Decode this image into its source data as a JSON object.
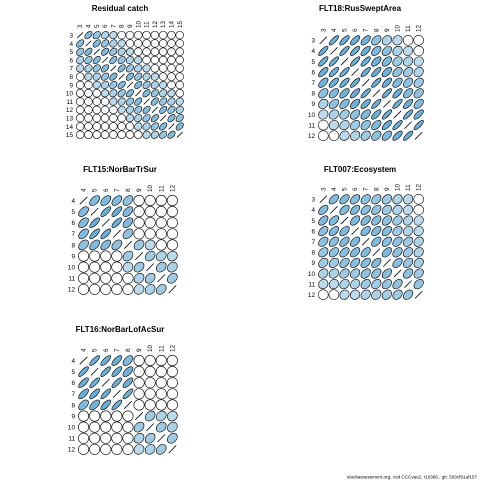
{
  "footer_text": "stockassessment.org, cod CCCvas2, r10366 , git: 503cf91af157",
  "colors": {
    "ellipse_fill": "#6baed6",
    "stroke": "#000000",
    "background": "#ffffff"
  },
  "chart_data": [
    {
      "type": "heatmap",
      "title": "Residual catch",
      "ages": [
        3,
        4,
        5,
        6,
        7,
        8,
        9,
        10,
        11,
        12,
        13,
        14,
        15
      ],
      "correlations": [
        [
          1.0,
          0.5,
          0.35,
          0.2,
          0.1,
          0.0,
          0.0,
          0.0,
          0.0,
          0.0,
          0.0,
          0.0,
          0.0
        ],
        [
          0.5,
          1.0,
          0.5,
          0.35,
          0.2,
          0.1,
          0.0,
          0.0,
          0.0,
          0.0,
          0.0,
          0.0,
          0.0
        ],
        [
          0.35,
          0.5,
          1.0,
          0.5,
          0.35,
          0.2,
          0.1,
          0.0,
          0.0,
          0.0,
          0.0,
          0.0,
          0.0
        ],
        [
          0.2,
          0.35,
          0.5,
          1.0,
          0.5,
          0.35,
          0.2,
          0.1,
          0.0,
          0.0,
          0.0,
          0.0,
          0.0
        ],
        [
          0.1,
          0.2,
          0.35,
          0.5,
          1.0,
          0.5,
          0.35,
          0.2,
          0.1,
          0.0,
          0.0,
          0.0,
          0.0
        ],
        [
          0.0,
          0.1,
          0.2,
          0.35,
          0.5,
          1.0,
          0.5,
          0.35,
          0.2,
          0.1,
          0.0,
          0.0,
          0.0
        ],
        [
          0.0,
          0.0,
          0.1,
          0.2,
          0.35,
          0.5,
          1.0,
          0.5,
          0.35,
          0.2,
          0.1,
          0.0,
          0.0
        ],
        [
          0.0,
          0.0,
          0.0,
          0.1,
          0.2,
          0.35,
          0.5,
          1.0,
          0.5,
          0.35,
          0.2,
          0.1,
          0.0
        ],
        [
          0.0,
          0.0,
          0.0,
          0.0,
          0.1,
          0.2,
          0.35,
          0.5,
          1.0,
          0.5,
          0.35,
          0.2,
          0.1
        ],
        [
          0.0,
          0.0,
          0.0,
          0.0,
          0.0,
          0.1,
          0.2,
          0.35,
          0.5,
          1.0,
          0.5,
          0.35,
          0.2
        ],
        [
          0.0,
          0.0,
          0.0,
          0.0,
          0.0,
          0.0,
          0.1,
          0.2,
          0.35,
          0.5,
          1.0,
          0.5,
          0.35
        ],
        [
          0.0,
          0.0,
          0.0,
          0.0,
          0.0,
          0.0,
          0.0,
          0.1,
          0.2,
          0.35,
          0.5,
          1.0,
          0.5
        ],
        [
          0.0,
          0.0,
          0.0,
          0.0,
          0.0,
          0.0,
          0.0,
          0.0,
          0.1,
          0.2,
          0.35,
          0.5,
          1.0
        ]
      ]
    },
    {
      "type": "heatmap",
      "title": "FLT18:RusSweptArea",
      "ages": [
        3,
        4,
        5,
        6,
        7,
        8,
        9,
        10,
        11,
        12
      ],
      "correlations": [
        [
          1.0,
          0.8,
          0.75,
          0.7,
          0.6,
          0.4,
          0.2,
          0.1,
          0.0,
          0.0
        ],
        [
          0.8,
          1.0,
          0.8,
          0.75,
          0.7,
          0.5,
          0.4,
          0.2,
          0.1,
          0.0
        ],
        [
          0.75,
          0.8,
          1.0,
          0.8,
          0.75,
          0.6,
          0.5,
          0.3,
          0.2,
          0.1
        ],
        [
          0.7,
          0.75,
          0.8,
          1.0,
          0.8,
          0.75,
          0.6,
          0.4,
          0.3,
          0.2
        ],
        [
          0.6,
          0.7,
          0.75,
          0.8,
          1.0,
          0.8,
          0.7,
          0.5,
          0.4,
          0.3
        ],
        [
          0.4,
          0.5,
          0.6,
          0.75,
          0.8,
          1.0,
          0.8,
          0.7,
          0.5,
          0.4
        ],
        [
          0.2,
          0.4,
          0.5,
          0.6,
          0.7,
          0.8,
          1.0,
          0.8,
          0.7,
          0.5
        ],
        [
          0.1,
          0.2,
          0.3,
          0.4,
          0.5,
          0.7,
          0.8,
          1.0,
          0.8,
          0.7
        ],
        [
          0.0,
          0.1,
          0.2,
          0.3,
          0.4,
          0.5,
          0.7,
          0.8,
          1.0,
          0.8
        ],
        [
          0.0,
          0.0,
          0.1,
          0.2,
          0.3,
          0.4,
          0.5,
          0.7,
          0.8,
          1.0
        ]
      ]
    },
    {
      "type": "heatmap",
      "title": "FLT15:NorBarTrSur",
      "ages": [
        4,
        5,
        6,
        7,
        8,
        9,
        10,
        11,
        12
      ],
      "correlations": [
        [
          1.0,
          0.5,
          0.5,
          0.5,
          0.4,
          0.0,
          0.0,
          0.0,
          0.0
        ],
        [
          0.5,
          1.0,
          0.75,
          0.75,
          0.5,
          0.0,
          0.0,
          0.0,
          0.0
        ],
        [
          0.5,
          0.75,
          1.0,
          0.75,
          0.5,
          0.0,
          0.0,
          0.0,
          0.0
        ],
        [
          0.5,
          0.75,
          0.75,
          1.0,
          0.4,
          0.0,
          0.0,
          0.0,
          0.0
        ],
        [
          0.4,
          0.5,
          0.5,
          0.4,
          1.0,
          0.3,
          0.1,
          0.0,
          0.0
        ],
        [
          0.0,
          0.0,
          0.0,
          0.0,
          0.3,
          1.0,
          0.3,
          0.2,
          0.1
        ],
        [
          0.0,
          0.0,
          0.0,
          0.0,
          0.1,
          0.3,
          1.0,
          0.3,
          0.2
        ],
        [
          0.0,
          0.0,
          0.0,
          0.0,
          0.0,
          0.2,
          0.3,
          1.0,
          0.3
        ],
        [
          0.0,
          0.0,
          0.0,
          0.0,
          0.0,
          0.1,
          0.2,
          0.3,
          1.0
        ]
      ]
    },
    {
      "type": "heatmap",
      "title": "FLT007:Ecosystem",
      "ages": [
        3,
        4,
        5,
        6,
        7,
        8,
        9,
        10,
        11,
        12
      ],
      "correlations": [
        [
          1.0,
          0.5,
          0.5,
          0.45,
          0.4,
          0.35,
          0.3,
          0.2,
          0.1,
          0.0
        ],
        [
          0.5,
          1.0,
          0.5,
          0.5,
          0.45,
          0.4,
          0.3,
          0.2,
          0.1,
          0.0
        ],
        [
          0.5,
          0.5,
          1.0,
          0.5,
          0.5,
          0.45,
          0.4,
          0.3,
          0.2,
          0.1
        ],
        [
          0.45,
          0.5,
          0.5,
          1.0,
          0.5,
          0.5,
          0.45,
          0.3,
          0.2,
          0.1
        ],
        [
          0.4,
          0.45,
          0.5,
          0.5,
          1.0,
          0.5,
          0.45,
          0.4,
          0.3,
          0.2
        ],
        [
          0.35,
          0.4,
          0.45,
          0.5,
          0.5,
          1.0,
          0.5,
          0.4,
          0.3,
          0.2
        ],
        [
          0.3,
          0.3,
          0.4,
          0.45,
          0.45,
          0.5,
          1.0,
          0.45,
          0.35,
          0.25
        ],
        [
          0.2,
          0.2,
          0.3,
          0.3,
          0.4,
          0.4,
          0.45,
          1.0,
          0.4,
          0.3
        ],
        [
          0.1,
          0.1,
          0.2,
          0.2,
          0.3,
          0.3,
          0.35,
          0.4,
          1.0,
          0.35
        ],
        [
          0.0,
          0.0,
          0.1,
          0.1,
          0.2,
          0.2,
          0.25,
          0.3,
          0.35,
          1.0
        ]
      ]
    },
    {
      "type": "heatmap",
      "title": "FLT16:NorBarLofAcSur",
      "ages": [
        4,
        5,
        6,
        7,
        8,
        9,
        10,
        11,
        12
      ],
      "correlations": [
        [
          1.0,
          0.8,
          0.75,
          0.7,
          0.5,
          0.0,
          0.0,
          0.0,
          0.0
        ],
        [
          0.8,
          1.0,
          0.8,
          0.75,
          0.6,
          0.0,
          0.0,
          0.0,
          0.0
        ],
        [
          0.75,
          0.8,
          1.0,
          0.8,
          0.7,
          0.0,
          0.0,
          0.0,
          0.0
        ],
        [
          0.7,
          0.75,
          0.8,
          1.0,
          0.8,
          0.0,
          0.0,
          0.0,
          0.0
        ],
        [
          0.5,
          0.6,
          0.7,
          0.8,
          1.0,
          0.0,
          0.0,
          0.0,
          0.0
        ],
        [
          0.0,
          0.0,
          0.0,
          0.0,
          0.0,
          1.0,
          0.3,
          0.2,
          0.1
        ],
        [
          0.0,
          0.0,
          0.0,
          0.0,
          0.0,
          0.3,
          1.0,
          0.3,
          0.2
        ],
        [
          0.0,
          0.0,
          0.0,
          0.0,
          0.0,
          0.2,
          0.3,
          1.0,
          0.3
        ],
        [
          0.0,
          0.0,
          0.0,
          0.0,
          0.0,
          0.1,
          0.2,
          0.3,
          1.0
        ]
      ]
    }
  ]
}
